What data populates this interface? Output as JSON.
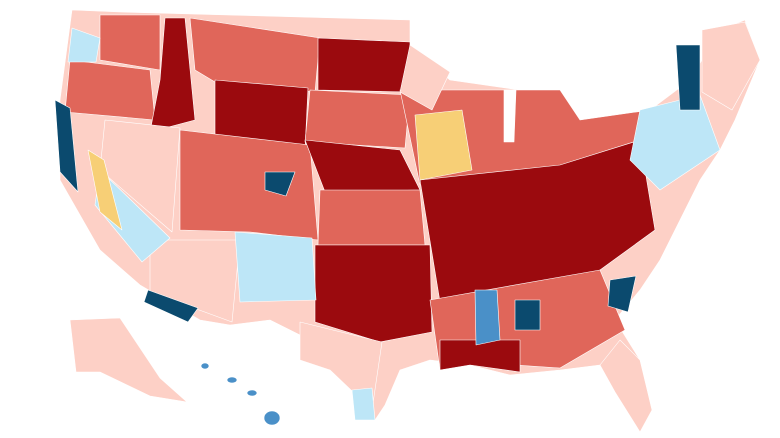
{
  "map": {
    "colors": {
      "dark_red": "#9b0a0e",
      "red": "#e0665a",
      "light_red": "#fdd0c6",
      "tossup_yellow": "#f7cf76",
      "light_blue": "#bde6f7",
      "blue": "#4a90c8",
      "dark_blue": "#0b4a6e"
    }
  }
}
